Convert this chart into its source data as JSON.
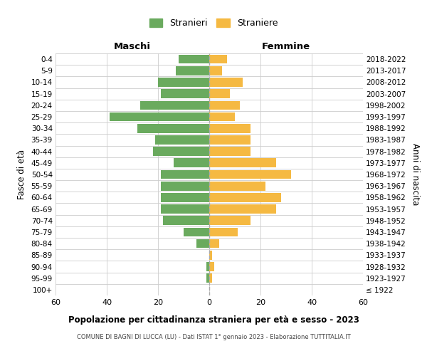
{
  "age_groups": [
    "100+",
    "95-99",
    "90-94",
    "85-89",
    "80-84",
    "75-79",
    "70-74",
    "65-69",
    "60-64",
    "55-59",
    "50-54",
    "45-49",
    "40-44",
    "35-39",
    "30-34",
    "25-29",
    "20-24",
    "15-19",
    "10-14",
    "5-9",
    "0-4"
  ],
  "birth_years": [
    "≤ 1922",
    "1923-1927",
    "1928-1932",
    "1933-1937",
    "1938-1942",
    "1943-1947",
    "1948-1952",
    "1953-1957",
    "1958-1962",
    "1963-1967",
    "1968-1972",
    "1973-1977",
    "1978-1982",
    "1983-1987",
    "1988-1992",
    "1993-1997",
    "1998-2002",
    "2003-2007",
    "2008-2012",
    "2013-2017",
    "2018-2022"
  ],
  "maschi": [
    0,
    1,
    1,
    0,
    5,
    10,
    18,
    19,
    19,
    19,
    19,
    14,
    22,
    21,
    28,
    39,
    27,
    19,
    20,
    13,
    12
  ],
  "femmine": [
    0,
    1,
    2,
    1,
    4,
    11,
    16,
    26,
    28,
    22,
    32,
    26,
    16,
    16,
    16,
    10,
    12,
    8,
    13,
    5,
    7
  ],
  "maschi_color": "#6aaa5e",
  "femmine_color": "#f5b942",
  "dashed_line_color": "#aaaaaa",
  "grid_color": "#cccccc",
  "bg_color": "#ffffff",
  "title": "Popolazione per cittadinanza straniera per età e sesso - 2023",
  "subtitle": "COMUNE DI BAGNI DI LUCCA (LU) - Dati ISTAT 1° gennaio 2023 - Elaborazione TUTTITALIA.IT",
  "xlabel_left": "Maschi",
  "xlabel_right": "Femmine",
  "ylabel_left": "Fasce di età",
  "ylabel_right": "Anni di nascita",
  "legend_stranieri": "Stranieri",
  "legend_straniere": "Straniere",
  "xlim": 60,
  "xtick_labels": [
    "60",
    "40",
    "20",
    "0",
    "20",
    "40",
    "60"
  ]
}
